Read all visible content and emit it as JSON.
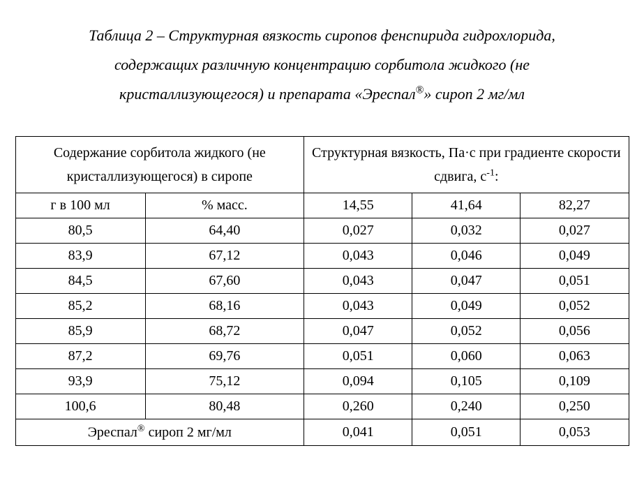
{
  "caption": {
    "line1": "Таблица 2 – Структурная вязкость сиропов фенспирида гидрохлорида,",
    "line2": "содержащих различную концентрацию сорбитола жидкого (не",
    "line3_a": "кристаллизующегося) и препарата «Эреспал",
    "line3_sup": "®",
    "line3_b": "» сироп 2 мг/мл"
  },
  "table": {
    "header_left": "Содержание сорбитола жидкого (не кристаллизующегося) в сиропе",
    "header_right_a": "Структурная вязкость, Па·с при градиенте скорости сдвига, с",
    "header_right_sup": "-1",
    "header_right_b": ":",
    "sub_left_1": "г в 100 мл",
    "sub_left_2": "% масс.",
    "sub_right_1": "14,55",
    "sub_right_2": "41,64",
    "sub_right_3": "82,27",
    "rows": [
      {
        "c1": "80,5",
        "c2": "64,40",
        "c3": "0,027",
        "c4": "0,032",
        "c5": "0,027"
      },
      {
        "c1": "83,9",
        "c2": "67,12",
        "c3": "0,043",
        "c4": "0,046",
        "c5": "0,049"
      },
      {
        "c1": "84,5",
        "c2": "67,60",
        "c3": "0,043",
        "c4": "0,047",
        "c5": "0,051"
      },
      {
        "c1": "85,2",
        "c2": "68,16",
        "c3": "0,043",
        "c4": "0,049",
        "c5": "0,052"
      },
      {
        "c1": "85,9",
        "c2": "68,72",
        "c3": "0,047",
        "c4": "0,052",
        "c5": "0,056"
      },
      {
        "c1": "87,2",
        "c2": "69,76",
        "c3": "0,051",
        "c4": "0,060",
        "c5": "0,063"
      },
      {
        "c1": "93,9",
        "c2": "75,12",
        "c3": "0,094",
        "c4": "0,105",
        "c5": "0,109"
      },
      {
        "c1": "100,6",
        "c2": "80,48",
        "c3": "0,260",
        "c4": "0,240",
        "c5": "0,250"
      }
    ],
    "footer": {
      "label_a": "Эреспал",
      "label_sup": "®",
      "label_b": " сироп 2 мг/мл",
      "c3": "0,041",
      "c4": "0,051",
      "c5": "0,053"
    }
  }
}
